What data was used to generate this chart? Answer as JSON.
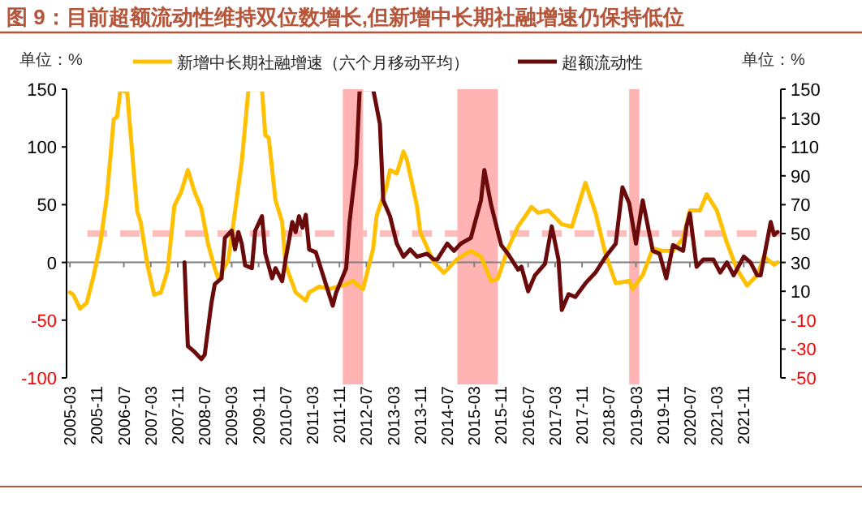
{
  "chart_data": {
    "type": "line",
    "title": "图 9：目前超额流动性维持双位数增长,但新增中长期社融增速仍保持低位",
    "ylabel": "单位：%",
    "y2label": "单位：%",
    "legend": "top",
    "xlim": [
      "2005-02",
      "2022-10"
    ],
    "xticks": [
      "2005-03",
      "2005-11",
      "2006-07",
      "2007-03",
      "2007-11",
      "2008-07",
      "2009-03",
      "2009-11",
      "2010-07",
      "2011-03",
      "2011-11",
      "2012-07",
      "2013-03",
      "2013-11",
      "2014-07",
      "2015-03",
      "2015-11",
      "2016-07",
      "2017-03",
      "2017-11",
      "2018-07",
      "2019-03",
      "2019-11",
      "2020-07",
      "2021-03",
      "2021-11"
    ],
    "ylim": [
      -100,
      150
    ],
    "yticks": [
      -100,
      -50,
      0,
      50,
      100,
      150
    ],
    "y2lim": [
      -50,
      150
    ],
    "y2ticks": [
      -50,
      -30,
      -10,
      10,
      30,
      50,
      70,
      90,
      110,
      130,
      150
    ],
    "bands": [
      {
        "axis": "x",
        "from": "2011-12",
        "to": "2012-06",
        "color": "#ffb3b3"
      },
      {
        "axis": "x",
        "from": "2014-10",
        "to": "2015-10",
        "color": "#ffb3b3"
      },
      {
        "axis": "x",
        "from": "2019-01",
        "to": "2019-04",
        "color": "#ffb3b3"
      }
    ],
    "ref_lines": [
      {
        "axis": "y2",
        "value": 50,
        "color": "#ffb3b3",
        "line_style": "dashed"
      }
    ],
    "series": [
      {
        "name": "新增中长期社融增速（六个月移动平均）",
        "color": "#ffc000",
        "axis": "y",
        "x": [
          "2005-03",
          "2005-04",
          "2005-06",
          "2005-08",
          "2005-10",
          "2005-12",
          "2006-02",
          "2006-04",
          "2006-05",
          "2006-06",
          "2006-08",
          "2006-10",
          "2006-11",
          "2006-12",
          "2007-02",
          "2007-04",
          "2007-06",
          "2007-08",
          "2007-10",
          "2007-12",
          "2008-02",
          "2008-04",
          "2008-06",
          "2008-08",
          "2008-10",
          "2008-11",
          "2009-02",
          "2009-04",
          "2009-06",
          "2009-08",
          "2009-12",
          "2010-01",
          "2010-02",
          "2010-04",
          "2010-06",
          "2010-07",
          "2010-10",
          "2011-01",
          "2011-02",
          "2011-05",
          "2011-08",
          "2012-01",
          "2012-03",
          "2012-05",
          "2012-06",
          "2012-09",
          "2012-10",
          "2013-01",
          "2013-02",
          "2013-04",
          "2013-06",
          "2013-07",
          "2013-10",
          "2013-11",
          "2014-03",
          "2014-06",
          "2014-10",
          "2015-02",
          "2015-05",
          "2015-08",
          "2015-10",
          "2016-01",
          "2016-04",
          "2016-08",
          "2016-10",
          "2017-01",
          "2017-05",
          "2017-08",
          "2017-12",
          "2018-03",
          "2018-06",
          "2018-09",
          "2019-01",
          "2019-02",
          "2019-05",
          "2019-08",
          "2019-11",
          "2020-02",
          "2020-05",
          "2020-07",
          "2020-10",
          "2020-12",
          "2021-03",
          "2021-06",
          "2021-09",
          "2021-12",
          "2022-03",
          "2022-05",
          "2022-08",
          "2022-09"
        ],
        "values": [
          -26,
          -28,
          -40,
          -35,
          -12,
          16,
          58,
          124,
          126,
          150,
          147,
          77,
          44,
          35,
          -2,
          -28,
          -26,
          -7,
          49,
          61,
          80,
          61,
          47,
          16,
          -5,
          -14,
          2,
          44,
          87,
          150,
          150,
          110,
          108,
          54,
          35,
          -2,
          -26,
          -33,
          -26,
          -21,
          -23,
          -19,
          -16,
          -21,
          -23,
          12,
          40,
          66,
          80,
          77,
          96,
          89,
          49,
          26,
          0,
          -9,
          3,
          10,
          5,
          -16,
          -14,
          12,
          31,
          48,
          43,
          45,
          33,
          31,
          69,
          43,
          7,
          -18,
          -16,
          -23,
          -11,
          12,
          10,
          10,
          21,
          45,
          45,
          59,
          45,
          17,
          -6,
          -20,
          -11,
          5,
          -2,
          0
        ]
      },
      {
        "name": "超额流动性",
        "color": "#6b0a0a",
        "axis": "y2",
        "x": [
          "2008-01",
          "2008-02",
          "2008-04",
          "2008-06",
          "2008-07",
          "2008-09",
          "2008-10",
          "2008-12",
          "2009-01",
          "2009-03",
          "2009-04",
          "2009-05",
          "2009-06",
          "2009-07",
          "2009-09",
          "2009-10",
          "2009-12",
          "2010-01",
          "2010-03",
          "2010-04",
          "2010-06",
          "2010-07",
          "2010-09",
          "2010-10",
          "2010-11",
          "2010-12",
          "2011-01",
          "2011-02",
          "2011-04",
          "2011-06",
          "2011-09",
          "2011-10",
          "2012-01",
          "2012-02",
          "2012-04",
          "2012-05",
          "2012-09",
          "2012-11",
          "2012-12",
          "2013-02",
          "2013-04",
          "2013-06",
          "2013-08",
          "2013-10",
          "2014-01",
          "2014-03",
          "2014-04",
          "2014-07",
          "2014-09",
          "2014-11",
          "2015-02",
          "2015-05",
          "2015-06",
          "2015-08",
          "2015-11",
          "2016-01",
          "2016-04",
          "2016-05",
          "2016-07",
          "2016-09",
          "2016-12",
          "2017-02",
          "2017-04",
          "2017-05",
          "2017-07",
          "2017-09",
          "2017-12",
          "2018-03",
          "2018-06",
          "2018-09",
          "2018-11",
          "2019-01",
          "2019-03",
          "2019-05",
          "2019-08",
          "2019-10",
          "2019-12",
          "2020-02",
          "2020-05",
          "2020-06",
          "2020-07",
          "2020-09",
          "2020-11",
          "2021-02",
          "2021-04",
          "2021-06",
          "2021-08",
          "2021-11",
          "2022-01",
          "2022-03",
          "2022-04",
          "2022-07",
          "2022-08",
          "2022-09"
        ],
        "values": [
          30,
          -28,
          -32,
          -37,
          -34,
          2,
          15,
          19,
          47,
          52,
          39,
          51,
          43,
          28,
          26,
          52,
          62,
          36,
          19,
          26,
          17,
          32,
          58,
          51,
          62,
          54,
          63,
          39,
          37,
          22,
          0,
          9,
          26,
          58,
          99,
          150,
          150,
          126,
          73,
          62,
          43,
          34,
          39,
          34,
          36,
          32,
          32,
          43,
          38,
          43,
          47,
          73,
          94,
          70,
          42,
          36,
          25,
          27,
          10,
          21,
          29,
          55,
          32,
          -3,
          8,
          6,
          15.5,
          23,
          34,
          43,
          82,
          71,
          43,
          73,
          38,
          36,
          19,
          42,
          38,
          55,
          64,
          27,
          32,
          32,
          23,
          30,
          21,
          34,
          30,
          21,
          21,
          58,
          49,
          51
        ]
      }
    ]
  }
}
